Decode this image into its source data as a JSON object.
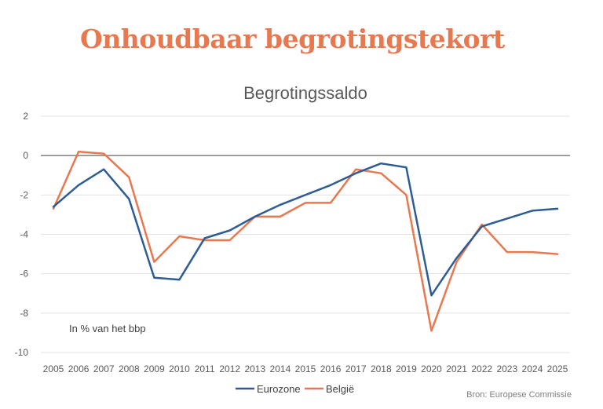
{
  "headline": "Onhoudbaar begrotingstekort",
  "source": "Bron: Europese Commissie",
  "colors": {
    "headline": "#e8784f",
    "eurozone": "#2e5c94",
    "belgie": "#e8784f"
  },
  "chart_data": {
    "type": "line",
    "title": "Begrotingssaldo",
    "annotation": "In % van het bbp",
    "x": [
      "2005",
      "2006",
      "2007",
      "2008",
      "2009",
      "2010",
      "2011",
      "2012",
      "2013",
      "2014",
      "2015",
      "2016",
      "2017",
      "2018",
      "2019",
      "2020",
      "2021",
      "2022",
      "2023",
      "2024",
      "2025"
    ],
    "ylim": [
      -10,
      2
    ],
    "yticks": [
      2,
      0,
      -2,
      -4,
      -6,
      -8,
      -10
    ],
    "grid": true,
    "legend_position": "bottom",
    "series": [
      {
        "name": "Eurozone",
        "color": "#2e5c94",
        "values": [
          -2.6,
          -1.5,
          -0.7,
          -2.2,
          -6.2,
          -6.3,
          -4.2,
          -3.8,
          -3.1,
          -2.5,
          -2.0,
          -1.5,
          -0.9,
          -0.4,
          -0.6,
          -7.1,
          -5.2,
          -3.6,
          -3.2,
          -2.8,
          -2.7
        ]
      },
      {
        "name": "België",
        "color": "#e8784f",
        "values": [
          -2.7,
          0.2,
          0.1,
          -1.1,
          -5.4,
          -4.1,
          -4.3,
          -4.3,
          -3.1,
          -3.1,
          -2.4,
          -2.4,
          -0.7,
          -0.9,
          -2.0,
          -8.9,
          -5.4,
          -3.5,
          -4.9,
          -4.9,
          -5.0
        ]
      }
    ]
  }
}
